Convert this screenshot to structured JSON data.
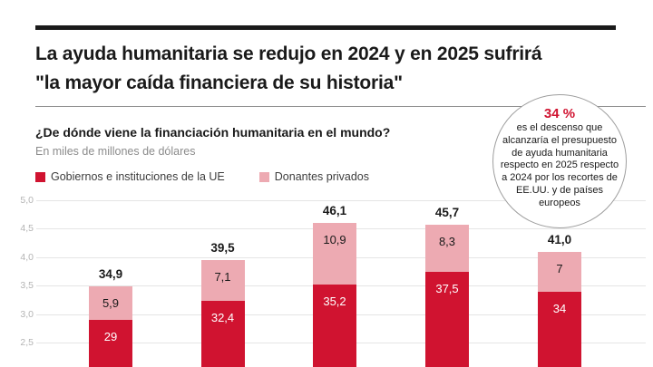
{
  "header": {
    "title_line1": "La ayuda humanitaria se redujo en 2024 y en 2025 sufrirá",
    "title_line2": "\"la mayor caída financiera de su historia\""
  },
  "chart_header": {
    "question": "¿De dónde viene la financiación humanitaria en el mundo?",
    "units": "En miles de millones de dólares"
  },
  "legend": [
    {
      "label": "Gobiernos e instituciones de la UE",
      "color": "#d01330"
    },
    {
      "label": "Donantes privados",
      "color": "#edaab2"
    }
  ],
  "annotation": {
    "highlight": "34 %",
    "text": "es el descenso que alcanzaría el presupuesto de ayuda humanitaria respecto en 2025 respecto a 2024 por los recortes de EE.UU. y de países europeos"
  },
  "chart_data": {
    "type": "bar",
    "stacked": true,
    "title": "¿De dónde viene la financiación humanitaria en el mundo?",
    "ylabel": "En miles de millones de dólares",
    "categories": [
      "",
      "",
      "",
      "",
      ""
    ],
    "series": [
      {
        "name": "Gobiernos e instituciones de la UE",
        "color": "#d01330",
        "label_color": "#ffffff",
        "values": [
          29,
          32.4,
          35.2,
          37.5,
          34
        ],
        "labels": [
          "29",
          "32,4",
          "35,2",
          "37,5",
          "34"
        ]
      },
      {
        "name": "Donantes privados",
        "color": "#edaab2",
        "label_color": "#1a1a1a",
        "values": [
          5.9,
          7.1,
          10.9,
          8.3,
          7
        ],
        "labels": [
          "5,9",
          "7,1",
          "10,9",
          "8,3",
          "7"
        ]
      }
    ],
    "totals": {
      "values": [
        34.9,
        39.5,
        46.1,
        45.7,
        41.0
      ],
      "labels": [
        "34,9",
        "39,5",
        "46,1",
        "45,7",
        "41,0"
      ]
    },
    "y_axis": {
      "ticks": [
        2.5,
        3.0,
        3.5,
        4.0,
        4.5,
        5.0
      ],
      "tick_labels": [
        "2,5",
        "3,0",
        "3,5",
        "4,0",
        "4,5",
        "5,0"
      ],
      "tick_value_multiplier": 10,
      "grid": true
    },
    "legend_position": "top-left",
    "bottom_cut_off": true
  }
}
